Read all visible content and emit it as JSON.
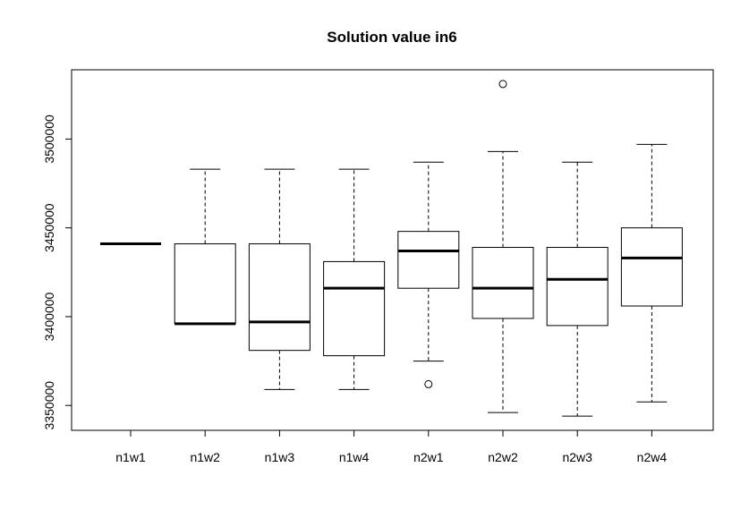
{
  "chart_data": {
    "type": "boxplot",
    "title": "Solution value in6",
    "xlabel": "",
    "ylabel": "",
    "categories": [
      "n1w1",
      "n1w2",
      "n1w3",
      "n1w4",
      "n2w1",
      "n2w2",
      "n2w3",
      "n2w4"
    ],
    "ylim": [
      3336000,
      3539000
    ],
    "yticks": [
      3350000,
      3400000,
      3450000,
      3500000
    ],
    "ytick_labels": [
      "3350000",
      "3400000",
      "3450000",
      "3500000"
    ],
    "boxes": [
      {
        "category": "n1w1",
        "min": 3441000,
        "q1": 3441000,
        "median": 3441000,
        "q3": 3441000,
        "max": 3441000,
        "outliers": []
      },
      {
        "category": "n1w2",
        "min": 3396000,
        "q1": 3396000,
        "median": 3396000,
        "q3": 3441000,
        "max": 3483000,
        "outliers": []
      },
      {
        "category": "n1w3",
        "min": 3359000,
        "q1": 3381000,
        "median": 3397000,
        "q3": 3441000,
        "max": 3483000,
        "outliers": []
      },
      {
        "category": "n1w4",
        "min": 3359000,
        "q1": 3378000,
        "median": 3416000,
        "q3": 3431000,
        "max": 3483000,
        "outliers": []
      },
      {
        "category": "n2w1",
        "min": 3375000,
        "q1": 3416000,
        "median": 3437000,
        "q3": 3448000,
        "max": 3487000,
        "outliers": [
          3362000
        ]
      },
      {
        "category": "n2w2",
        "min": 3346000,
        "q1": 3399000,
        "median": 3416000,
        "q3": 3439000,
        "max": 3493000,
        "outliers": [
          3531000
        ]
      },
      {
        "category": "n2w3",
        "min": 3344000,
        "q1": 3395000,
        "median": 3421000,
        "q3": 3439000,
        "max": 3487000,
        "outliers": []
      },
      {
        "category": "n2w4",
        "min": 3352000,
        "q1": 3406000,
        "median": 3433000,
        "q3": 3450000,
        "max": 3497000,
        "outliers": []
      }
    ]
  }
}
